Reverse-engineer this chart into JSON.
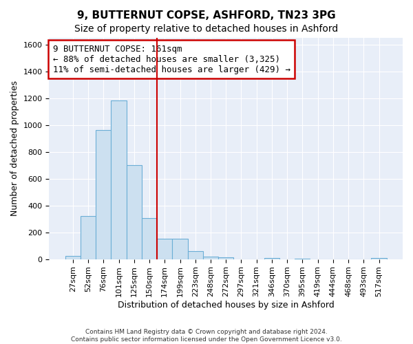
{
  "title": "9, BUTTERNUT COPSE, ASHFORD, TN23 3PG",
  "subtitle": "Size of property relative to detached houses in Ashford",
  "xlabel": "Distribution of detached houses by size in Ashford",
  "ylabel": "Number of detached properties",
  "footer_line1": "Contains HM Land Registry data © Crown copyright and database right 2024.",
  "footer_line2": "Contains public sector information licensed under the Open Government Licence v3.0.",
  "bar_labels": [
    "27sqm",
    "52sqm",
    "76sqm",
    "101sqm",
    "125sqm",
    "150sqm",
    "174sqm",
    "199sqm",
    "223sqm",
    "248sqm",
    "272sqm",
    "297sqm",
    "321sqm",
    "346sqm",
    "370sqm",
    "395sqm",
    "419sqm",
    "444sqm",
    "468sqm",
    "493sqm",
    "517sqm"
  ],
  "bar_values": [
    25,
    320,
    960,
    1185,
    700,
    305,
    150,
    150,
    60,
    20,
    15,
    0,
    0,
    10,
    0,
    5,
    0,
    0,
    0,
    0,
    10
  ],
  "bar_color": "#cce0f0",
  "bar_edge_color": "#6baed6",
  "vline_x": 6.0,
  "vline_color": "#cc0000",
  "annotation_line1": "9 BUTTERNUT COPSE: 161sqm",
  "annotation_line2": "← 88% of detached houses are smaller (3,325)",
  "annotation_line3": "11% of semi-detached houses are larger (429) →",
  "annotation_box_color": "#cc0000",
  "ylim": [
    0,
    1650
  ],
  "yticks": [
    0,
    200,
    400,
    600,
    800,
    1000,
    1200,
    1400,
    1600
  ],
  "background_color": "#ffffff",
  "plot_bg_color": "#e8eef8",
  "grid_color": "#ffffff",
  "title_fontsize": 11,
  "axis_label_fontsize": 9,
  "tick_fontsize": 8,
  "annotation_fontsize": 9
}
